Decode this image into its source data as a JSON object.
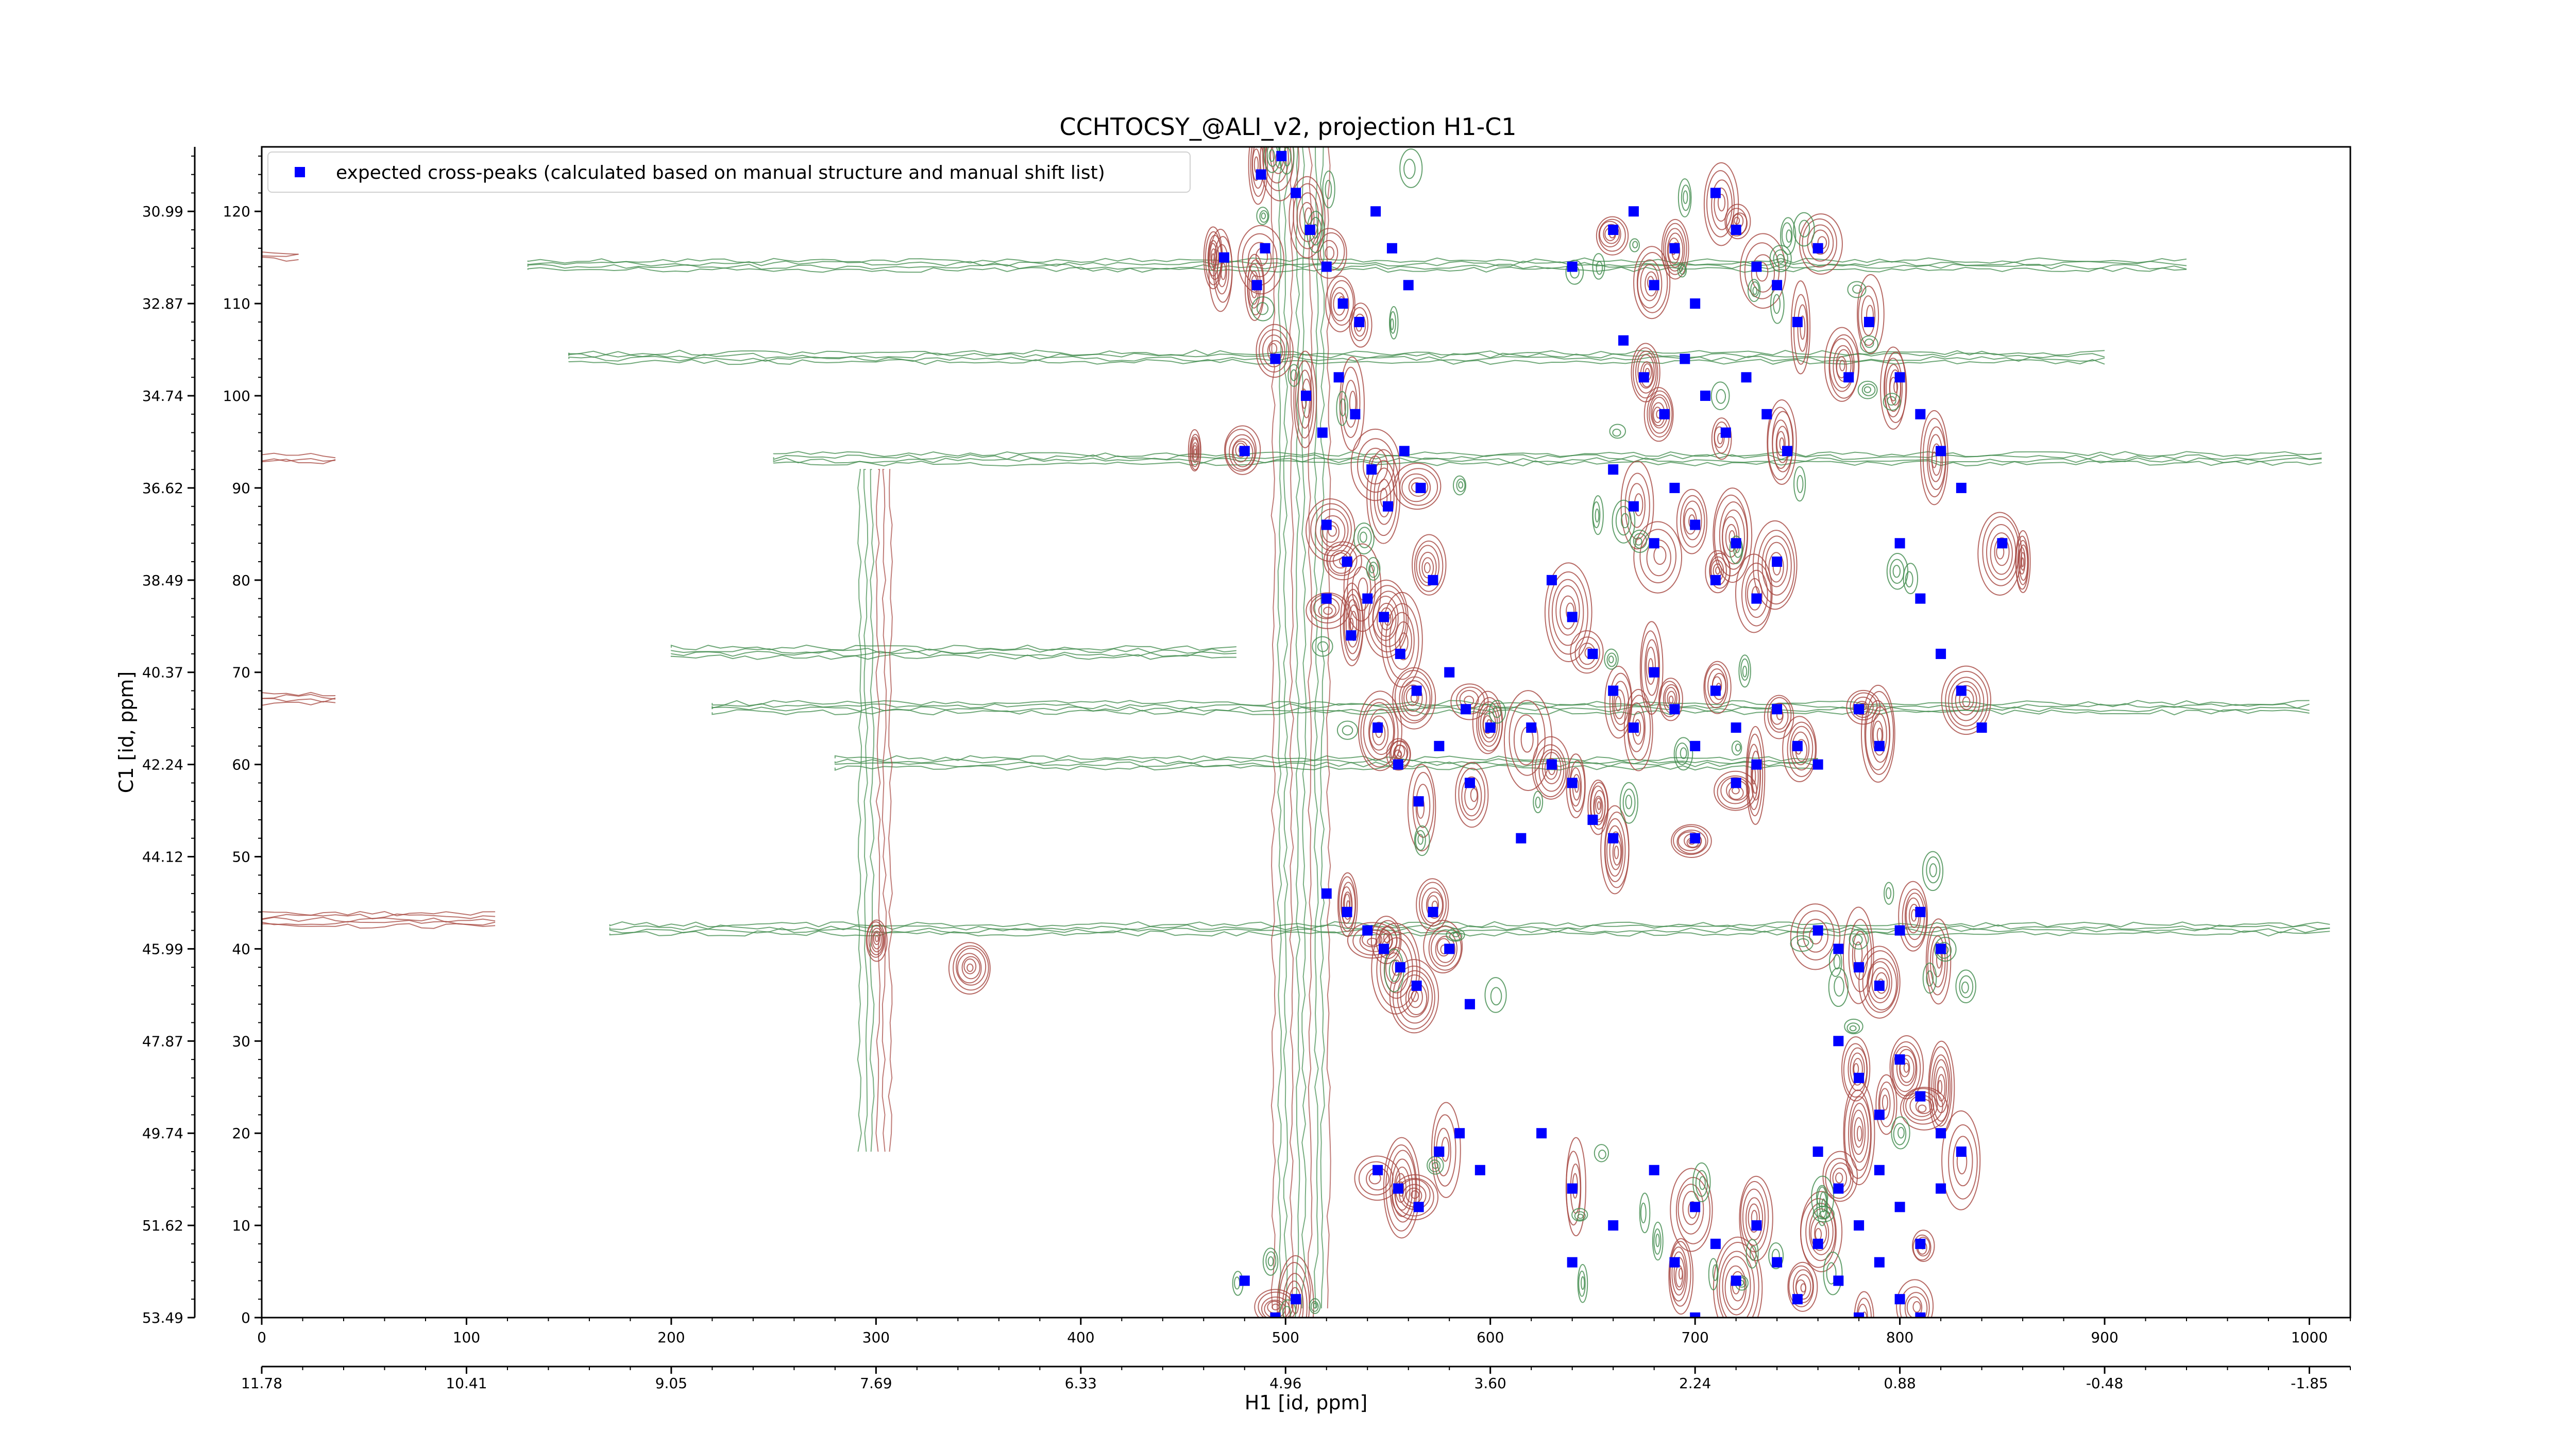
{
  "chart_data": {
    "type": "scatter",
    "title": "CCHTOCSY_@ALI_v2, projection H1-C1",
    "xlabel": "H1 [id, ppm]",
    "ylabel": "C1 [id, ppm]",
    "xlim": [
      0,
      1020
    ],
    "ylim": [
      0,
      127
    ],
    "x_ticks": [
      0,
      100,
      200,
      300,
      400,
      500,
      600,
      700,
      800,
      900,
      1000
    ],
    "y_ticks": [
      0,
      10,
      20,
      30,
      40,
      50,
      60,
      70,
      80,
      90,
      100,
      110,
      120
    ],
    "x_ppm_tick_labels": [
      "11.78",
      "10.41",
      "9.05",
      "7.69",
      "6.33",
      "4.96",
      "3.60",
      "2.24",
      "0.88",
      "-0.48",
      "-1.85"
    ],
    "y_ppm_tick_labels": [
      "53.49",
      "51.62",
      "49.74",
      "47.87",
      "45.99",
      "44.12",
      "42.24",
      "40.37",
      "38.49",
      "36.62",
      "34.74",
      "32.87",
      "30.99"
    ],
    "grid": false,
    "legend_position": "top-left",
    "series": [
      {
        "name": "expected cross-peaks (calculated based on manual structure and manual shift list)",
        "color": "#0000ff",
        "marker": "square",
        "points": [
          [
            488,
            124
          ],
          [
            490,
            116
          ],
          [
            486,
            112
          ],
          [
            498,
            126
          ],
          [
            505,
            122
          ],
          [
            512,
            118
          ],
          [
            520,
            114
          ],
          [
            528,
            110
          ],
          [
            536,
            108
          ],
          [
            544,
            120
          ],
          [
            552,
            116
          ],
          [
            560,
            112
          ],
          [
            470,
            115
          ],
          [
            495,
            104
          ],
          [
            510,
            100
          ],
          [
            518,
            96
          ],
          [
            526,
            102
          ],
          [
            534,
            98
          ],
          [
            542,
            92
          ],
          [
            550,
            88
          ],
          [
            558,
            94
          ],
          [
            566,
            90
          ],
          [
            480,
            94
          ],
          [
            520,
            86
          ],
          [
            530,
            82
          ],
          [
            540,
            78
          ],
          [
            548,
            76
          ],
          [
            556,
            72
          ],
          [
            564,
            68
          ],
          [
            572,
            80
          ],
          [
            580,
            70
          ],
          [
            588,
            66
          ],
          [
            520,
            78
          ],
          [
            532,
            74
          ],
          [
            545,
            64
          ],
          [
            555,
            60
          ],
          [
            565,
            56
          ],
          [
            575,
            62
          ],
          [
            590,
            58
          ],
          [
            600,
            64
          ],
          [
            615,
            52
          ],
          [
            520,
            46
          ],
          [
            530,
            44
          ],
          [
            540,
            42
          ],
          [
            548,
            40
          ],
          [
            556,
            38
          ],
          [
            564,
            36
          ],
          [
            572,
            44
          ],
          [
            580,
            40
          ],
          [
            590,
            34
          ],
          [
            545,
            16
          ],
          [
            555,
            14
          ],
          [
            565,
            12
          ],
          [
            575,
            18
          ],
          [
            585,
            20
          ],
          [
            595,
            16
          ],
          [
            480,
            4
          ],
          [
            495,
            0
          ],
          [
            505,
            2
          ],
          [
            640,
            114
          ],
          [
            660,
            118
          ],
          [
            670,
            120
          ],
          [
            680,
            112
          ],
          [
            690,
            116
          ],
          [
            700,
            110
          ],
          [
            710,
            122
          ],
          [
            720,
            118
          ],
          [
            730,
            114
          ],
          [
            740,
            112
          ],
          [
            750,
            108
          ],
          [
            760,
            116
          ],
          [
            665,
            106
          ],
          [
            675,
            102
          ],
          [
            685,
            98
          ],
          [
            695,
            104
          ],
          [
            705,
            100
          ],
          [
            715,
            96
          ],
          [
            725,
            102
          ],
          [
            735,
            98
          ],
          [
            745,
            94
          ],
          [
            660,
            92
          ],
          [
            670,
            88
          ],
          [
            680,
            84
          ],
          [
            690,
            90
          ],
          [
            700,
            86
          ],
          [
            710,
            80
          ],
          [
            720,
            84
          ],
          [
            730,
            78
          ],
          [
            740,
            82
          ],
          [
            630,
            80
          ],
          [
            640,
            76
          ],
          [
            650,
            72
          ],
          [
            660,
            68
          ],
          [
            670,
            64
          ],
          [
            680,
            70
          ],
          [
            690,
            66
          ],
          [
            700,
            62
          ],
          [
            710,
            68
          ],
          [
            720,
            64
          ],
          [
            730,
            60
          ],
          [
            740,
            66
          ],
          [
            750,
            62
          ],
          [
            620,
            64
          ],
          [
            630,
            60
          ],
          [
            640,
            58
          ],
          [
            650,
            54
          ],
          [
            660,
            52
          ],
          [
            700,
            52
          ],
          [
            720,
            58
          ],
          [
            760,
            60
          ],
          [
            780,
            66
          ],
          [
            790,
            62
          ],
          [
            760,
            42
          ],
          [
            770,
            40
          ],
          [
            780,
            38
          ],
          [
            790,
            36
          ],
          [
            800,
            42
          ],
          [
            810,
            44
          ],
          [
            820,
            40
          ],
          [
            770,
            30
          ],
          [
            780,
            26
          ],
          [
            790,
            22
          ],
          [
            800,
            28
          ],
          [
            810,
            24
          ],
          [
            820,
            20
          ],
          [
            760,
            18
          ],
          [
            770,
            14
          ],
          [
            780,
            10
          ],
          [
            790,
            16
          ],
          [
            800,
            12
          ],
          [
            810,
            8
          ],
          [
            820,
            14
          ],
          [
            830,
            18
          ],
          [
            700,
            12
          ],
          [
            710,
            8
          ],
          [
            720,
            4
          ],
          [
            730,
            10
          ],
          [
            740,
            6
          ],
          [
            750,
            2
          ],
          [
            760,
            8
          ],
          [
            770,
            4
          ],
          [
            780,
            0
          ],
          [
            790,
            6
          ],
          [
            800,
            2
          ],
          [
            810,
            0
          ],
          [
            625,
            20
          ],
          [
            640,
            14
          ],
          [
            660,
            10
          ],
          [
            680,
            16
          ],
          [
            690,
            6
          ],
          [
            700,
            0
          ],
          [
            640,
            6
          ],
          [
            800,
            102
          ],
          [
            810,
            98
          ],
          [
            820,
            94
          ],
          [
            830,
            90
          ],
          [
            800,
            84
          ],
          [
            810,
            78
          ],
          [
            820,
            72
          ],
          [
            830,
            68
          ],
          [
            840,
            64
          ],
          [
            850,
            84
          ],
          [
            775,
            102
          ],
          [
            785,
            108
          ]
        ]
      }
    ]
  }
}
